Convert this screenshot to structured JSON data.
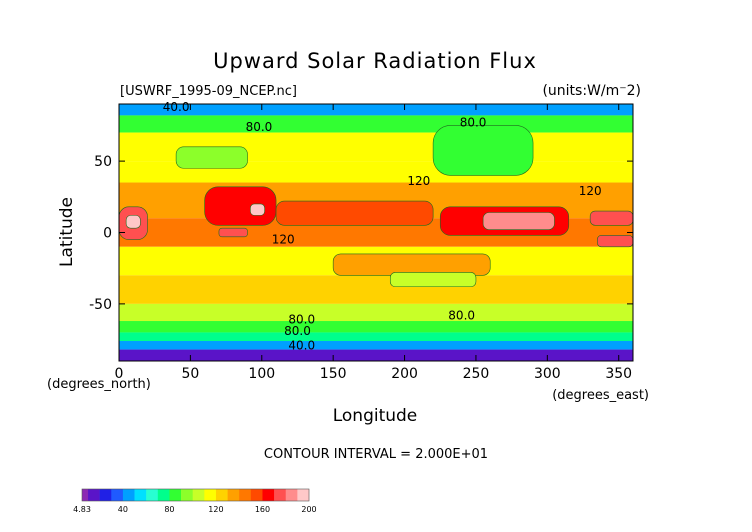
{
  "chart_data": {
    "type": "heatmap",
    "title": "Upward Solar Radiation Flux",
    "file_label": "[USWRF_1995-09_NCEP.nc]",
    "units_label": "(units:W/m⁻2)",
    "xlabel": "Longitude",
    "ylabel": "Latitude",
    "x_unit_note": "(degrees_east)",
    "y_unit_note": "(degrees_north)",
    "xlim": [
      0,
      360
    ],
    "ylim": [
      -90,
      90
    ],
    "x_ticks": [
      0,
      50,
      100,
      150,
      200,
      250,
      300,
      350
    ],
    "y_ticks": [
      -50,
      0,
      50
    ],
    "contour_interval_text": "CONTOUR INTERVAL = 2.000E+01",
    "contour_labels": [
      {
        "text": "40.0",
        "lon": 40,
        "lat": 88
      },
      {
        "text": "80.0",
        "lon": 98,
        "lat": 74
      },
      {
        "text": "80.0",
        "lon": 248,
        "lat": 77
      },
      {
        "text": "120",
        "lon": 210,
        "lat": 36
      },
      {
        "text": "120",
        "lon": 330,
        "lat": 29
      },
      {
        "text": "120",
        "lon": 115,
        "lat": -5
      },
      {
        "text": "80.0",
        "lon": 128,
        "lat": -61
      },
      {
        "text": "80.0",
        "lon": 125,
        "lat": -69
      },
      {
        "text": "80.0",
        "lon": 240,
        "lat": -58
      },
      {
        "text": "40.0",
        "lon": 128,
        "lat": -79
      }
    ],
    "field_bands": [
      {
        "lat_max": 90,
        "lat_min": 82,
        "value": 40
      },
      {
        "lat_max": 82,
        "lat_min": 70,
        "value": 80
      },
      {
        "lat_max": 70,
        "lat_min": 50,
        "value": 110
      },
      {
        "lat_max": 50,
        "lat_min": 35,
        "value": 115
      },
      {
        "lat_max": 35,
        "lat_min": 10,
        "value": 130
      },
      {
        "lat_max": 10,
        "lat_min": -10,
        "value": 140
      },
      {
        "lat_max": -10,
        "lat_min": -30,
        "value": 115
      },
      {
        "lat_max": -30,
        "lat_min": -50,
        "value": 120
      },
      {
        "lat_max": -50,
        "lat_min": -62,
        "value": 105
      },
      {
        "lat_max": -62,
        "lat_min": -70,
        "value": 85
      },
      {
        "lat_max": -70,
        "lat_min": -76,
        "value": 75
      },
      {
        "lat_max": -76,
        "lat_min": -82,
        "value": 40
      },
      {
        "lat_max": -82,
        "lat_min": -90,
        "value": 10
      }
    ],
    "field_patches": [
      {
        "lon_min": 0,
        "lon_max": 20,
        "lat_min": -5,
        "lat_max": 18,
        "value": 170
      },
      {
        "lon_min": 5,
        "lon_max": 15,
        "lat_min": 3,
        "lat_max": 12,
        "value": 195
      },
      {
        "lon_min": 60,
        "lon_max": 110,
        "lat_min": 5,
        "lat_max": 32,
        "value": 160
      },
      {
        "lon_min": 92,
        "lon_max": 102,
        "lat_min": 12,
        "lat_max": 20,
        "value": 195
      },
      {
        "lon_min": 70,
        "lon_max": 90,
        "lat_min": -3,
        "lat_max": 3,
        "value": 175
      },
      {
        "lon_min": 110,
        "lon_max": 220,
        "lat_min": 5,
        "lat_max": 22,
        "value": 150
      },
      {
        "lon_min": 225,
        "lon_max": 315,
        "lat_min": -2,
        "lat_max": 18,
        "value": 160
      },
      {
        "lon_min": 255,
        "lon_max": 305,
        "lat_min": 2,
        "lat_max": 14,
        "value": 180
      },
      {
        "lon_min": 330,
        "lon_max": 360,
        "lat_min": 5,
        "lat_max": 15,
        "value": 175
      },
      {
        "lon_min": 335,
        "lon_max": 360,
        "lat_min": -10,
        "lat_max": -2,
        "value": 170
      },
      {
        "lon_min": 150,
        "lon_max": 260,
        "lat_min": -30,
        "lat_max": -15,
        "value": 130
      },
      {
        "lon_min": 40,
        "lon_max": 90,
        "lat_min": 45,
        "lat_max": 60,
        "value": 90
      },
      {
        "lon_min": 220,
        "lon_max": 290,
        "lat_min": 40,
        "lat_max": 75,
        "value": 85
      },
      {
        "lon_min": 190,
        "lon_max": 250,
        "lat_min": -38,
        "lat_max": -28,
        "value": 105
      }
    ],
    "colorbar": {
      "tick_labels": [
        "4.83",
        "40",
        "80",
        "120",
        "160",
        "200"
      ],
      "tick_values": [
        4.83,
        40,
        80,
        120,
        160,
        200
      ],
      "levels": [
        4.83,
        10,
        20,
        30,
        40,
        50,
        60,
        70,
        80,
        90,
        100,
        110,
        120,
        130,
        140,
        150,
        160,
        170,
        180,
        190,
        200
      ],
      "colors": [
        "#8c28b4",
        "#5a14c8",
        "#2020e6",
        "#1f5aff",
        "#00a0ff",
        "#00e0ff",
        "#28ffd2",
        "#00ff8c",
        "#32ff32",
        "#8cff2a",
        "#c8ff28",
        "#ffff00",
        "#ffd200",
        "#ffa000",
        "#ff7800",
        "#ff4a00",
        "#ff0000",
        "#ff5050",
        "#ff8c8c",
        "#ffc8c8"
      ]
    }
  }
}
